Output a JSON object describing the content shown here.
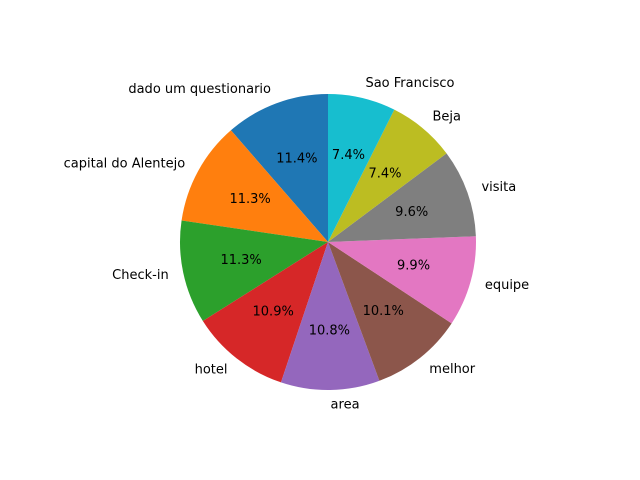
{
  "chart_data": {
    "type": "pie",
    "title": "",
    "start_angle_deg": 90,
    "direction": "counterclockwise",
    "legend": "none",
    "slices": [
      {
        "label": "dado um questionario",
        "value": 11.4,
        "pct_label": "11.4%",
        "color": "#1f77b4"
      },
      {
        "label": "capital do Alentejo",
        "value": 11.3,
        "pct_label": "11.3%",
        "color": "#ff7f0e"
      },
      {
        "label": "Check-in",
        "value": 11.3,
        "pct_label": "11.3%",
        "color": "#2ca02c"
      },
      {
        "label": "hotel",
        "value": 10.9,
        "pct_label": "10.9%",
        "color": "#d62728"
      },
      {
        "label": "area",
        "value": 10.8,
        "pct_label": "10.8%",
        "color": "#9467bd"
      },
      {
        "label": "melhor",
        "value": 10.1,
        "pct_label": "10.1%",
        "color": "#8c564b"
      },
      {
        "label": "equipe",
        "value": 9.9,
        "pct_label": "9.9%",
        "color": "#e377c2"
      },
      {
        "label": "visita",
        "value": 9.6,
        "pct_label": "9.6%",
        "color": "#7f7f7f"
      },
      {
        "label": "Beja",
        "value": 7.4,
        "pct_label": "7.4%",
        "color": "#bcbd22"
      },
      {
        "label": "Sao Francisco",
        "value": 7.4,
        "pct_label": "7.4%",
        "color": "#17becf"
      }
    ]
  }
}
